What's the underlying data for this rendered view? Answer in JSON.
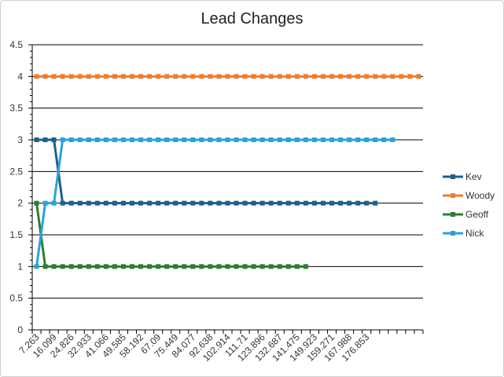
{
  "chart_data": {
    "type": "line",
    "title": "Lead Changes",
    "xlabel": "",
    "ylabel": "",
    "ylim": [
      0,
      4.5
    ],
    "yticks": [
      "0",
      "0.5",
      "1",
      "1.5",
      "2",
      "2.5",
      "3",
      "3.5",
      "4",
      "4.5"
    ],
    "grid": true,
    "legend_position": "right",
    "x_tick_labels": [
      "7.263",
      "16.099",
      "24.826",
      "32.933",
      "41.066",
      "49.585",
      "58.192",
      "67.09",
      "75.449",
      "84.077",
      "92.638",
      "102.914",
      "111.71",
      "123.896",
      "132.687",
      "141.475",
      "149.923",
      "159.271",
      "167.988",
      "176.853"
    ],
    "series": [
      {
        "name": "Kev",
        "color": "#1f5f8b",
        "values": [
          3,
          3,
          3,
          2,
          2,
          2,
          2,
          2,
          2,
          2,
          2,
          2,
          2,
          2,
          2,
          2,
          2,
          2,
          2,
          2,
          2,
          2,
          2,
          2,
          2,
          2,
          2,
          2,
          2,
          2,
          2,
          2,
          2,
          2,
          2,
          2,
          2,
          2,
          2,
          2
        ]
      },
      {
        "name": "Woody",
        "color": "#ed7d31",
        "values": [
          4,
          4,
          4,
          4,
          4,
          4,
          4,
          4,
          4,
          4,
          4,
          4,
          4,
          4,
          4,
          4,
          4,
          4,
          4,
          4,
          4,
          4,
          4,
          4,
          4,
          4,
          4,
          4,
          4,
          4,
          4,
          4,
          4,
          4,
          4,
          4,
          4,
          4,
          4,
          4,
          4,
          4,
          4,
          4,
          4
        ]
      },
      {
        "name": "Geoff",
        "color": "#2e7d32",
        "values": [
          2,
          1,
          1,
          1,
          1,
          1,
          1,
          1,
          1,
          1,
          1,
          1,
          1,
          1,
          1,
          1,
          1,
          1,
          1,
          1,
          1,
          1,
          1,
          1,
          1,
          1,
          1,
          1,
          1,
          1,
          1,
          1
        ]
      },
      {
        "name": "Nick",
        "color": "#29a3d9",
        "values": [
          1,
          2,
          2,
          3,
          3,
          3,
          3,
          3,
          3,
          3,
          3,
          3,
          3,
          3,
          3,
          3,
          3,
          3,
          3,
          3,
          3,
          3,
          3,
          3,
          3,
          3,
          3,
          3,
          3,
          3,
          3,
          3,
          3,
          3,
          3,
          3,
          3,
          3,
          3,
          3,
          3,
          3
        ]
      }
    ]
  }
}
